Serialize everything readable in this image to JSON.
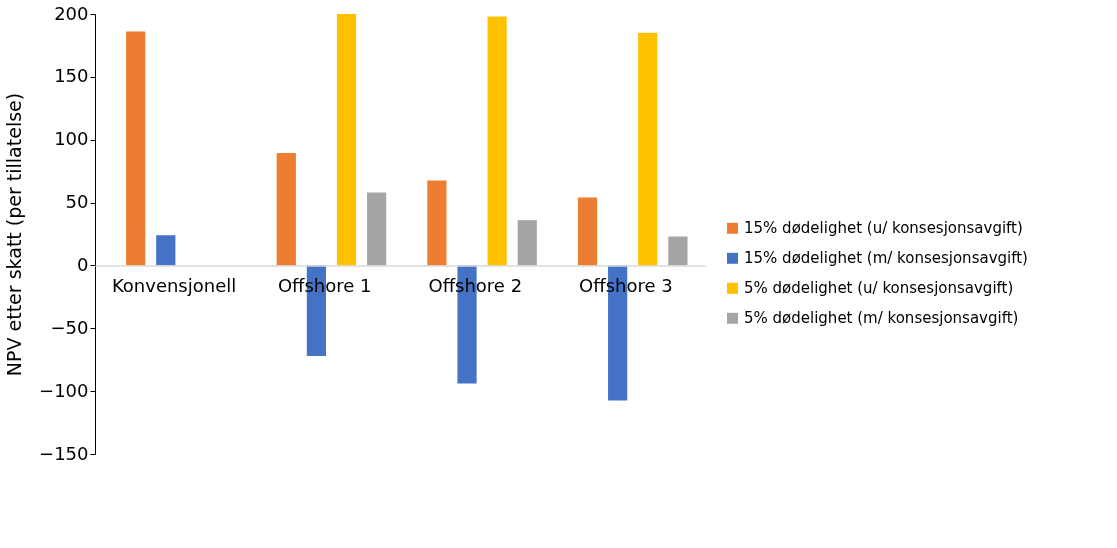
{
  "chart_data": {
    "type": "bar",
    "ylabel": "NPV etter skatt (per tillatelse)",
    "categories": [
      "Konvensjonell",
      "Offshore 1",
      "Offshore 2",
      "Offshore 3"
    ],
    "series": [
      {
        "name": "15% dødelighet (u/ konsesjonsavgift)",
        "color": "#ed7d31",
        "values": [
          186,
          89.5,
          67.5,
          54
        ]
      },
      {
        "name": "15% dødelighet (m/ konsesjonsavgift)",
        "color": "#4472c4",
        "values": [
          24,
          -72,
          -94,
          -107.5
        ]
      },
      {
        "name": "5% dødelighet (u/ konsesjonsavgift)",
        "color": "#ffc000",
        "values": [
          null,
          200,
          198,
          185
        ]
      },
      {
        "name": "5% dødelighet (m/ konsesjonsavgift)",
        "color": "#a5a5a5",
        "values": [
          null,
          58,
          36,
          23
        ]
      }
    ],
    "ylim": [
      -150,
      200
    ],
    "yticks": [
      -150,
      -100,
      -50,
      0,
      50,
      100,
      150,
      200
    ],
    "grid": false,
    "legend": "right"
  }
}
